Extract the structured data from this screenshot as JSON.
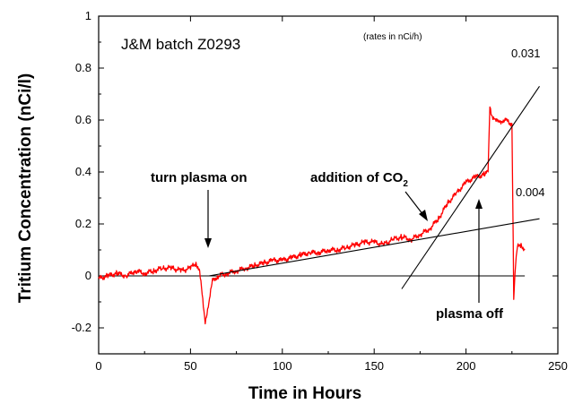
{
  "chart_data": {
    "type": "line",
    "title": "J&M batch Z0293",
    "xlabel": "Time in Hours",
    "ylabel": "Tritium Concentration (nCi/l)",
    "xlim": [
      0,
      250
    ],
    "ylim": [
      -0.3,
      1.0
    ],
    "x_ticks": [
      0,
      50,
      100,
      150,
      200,
      250
    ],
    "y_ticks": [
      -0.2,
      0,
      0.2,
      0.4,
      0.6,
      0.8,
      1
    ],
    "x_tick_labels": [
      "0",
      "50",
      "100",
      "150",
      "200",
      "250"
    ],
    "y_tick_labels": [
      "-0.2",
      "0",
      "0.2",
      "0.4",
      "0.6",
      "0.8",
      "1"
    ],
    "grid": false,
    "colors": {
      "data": "#ff0000",
      "fit": "#000000"
    },
    "series": [
      {
        "type": "measured",
        "x": [
          0,
          5,
          10,
          15,
          20,
          25,
          30,
          35,
          40,
          45,
          50,
          53,
          55,
          57,
          58,
          60,
          62,
          65,
          70,
          75,
          80,
          85,
          90,
          95,
          100,
          105,
          110,
          115,
          120,
          125,
          130,
          135,
          140,
          145,
          150,
          155,
          160,
          165,
          170,
          175,
          180,
          185,
          190,
          195,
          200,
          205,
          210,
          212,
          213,
          214,
          216,
          218,
          220,
          222,
          224,
          225,
          226,
          227,
          228,
          230,
          232
        ],
        "y": [
          -0.01,
          0,
          0.01,
          0,
          0.02,
          0.01,
          0.02,
          0.03,
          0.03,
          0.02,
          0.03,
          0.05,
          0.02,
          -0.12,
          -0.18,
          -0.1,
          -0.02,
          0,
          0.01,
          0.02,
          0.03,
          0.04,
          0.05,
          0.06,
          0.06,
          0.07,
          0.08,
          0.09,
          0.09,
          0.1,
          0.1,
          0.11,
          0.12,
          0.13,
          0.13,
          0.12,
          0.14,
          0.15,
          0.14,
          0.16,
          0.18,
          0.22,
          0.28,
          0.32,
          0.36,
          0.38,
          0.39,
          0.4,
          0.65,
          0.62,
          0.6,
          0.59,
          0.6,
          0.6,
          0.58,
          0.59,
          -0.08,
          0.05,
          0.11,
          0.12,
          0.1
        ]
      },
      {
        "type": "fit",
        "x": [
          60,
          240
        ],
        "y": [
          0,
          0.22
        ]
      },
      {
        "type": "fit",
        "x": [
          165,
          240
        ],
        "y": [
          -0.05,
          0.73
        ]
      }
    ],
    "baseline": 0,
    "annotations": {
      "title": "J&M batch Z0293",
      "rates_note": "(rates in nCi/h)",
      "rate_steep": "0.031",
      "rate_shallow": "0.004",
      "plasma_on": "turn plasma on",
      "co2_prefix": "addition of CO",
      "co2_sub": "2",
      "plasma_off": "plasma off"
    }
  }
}
